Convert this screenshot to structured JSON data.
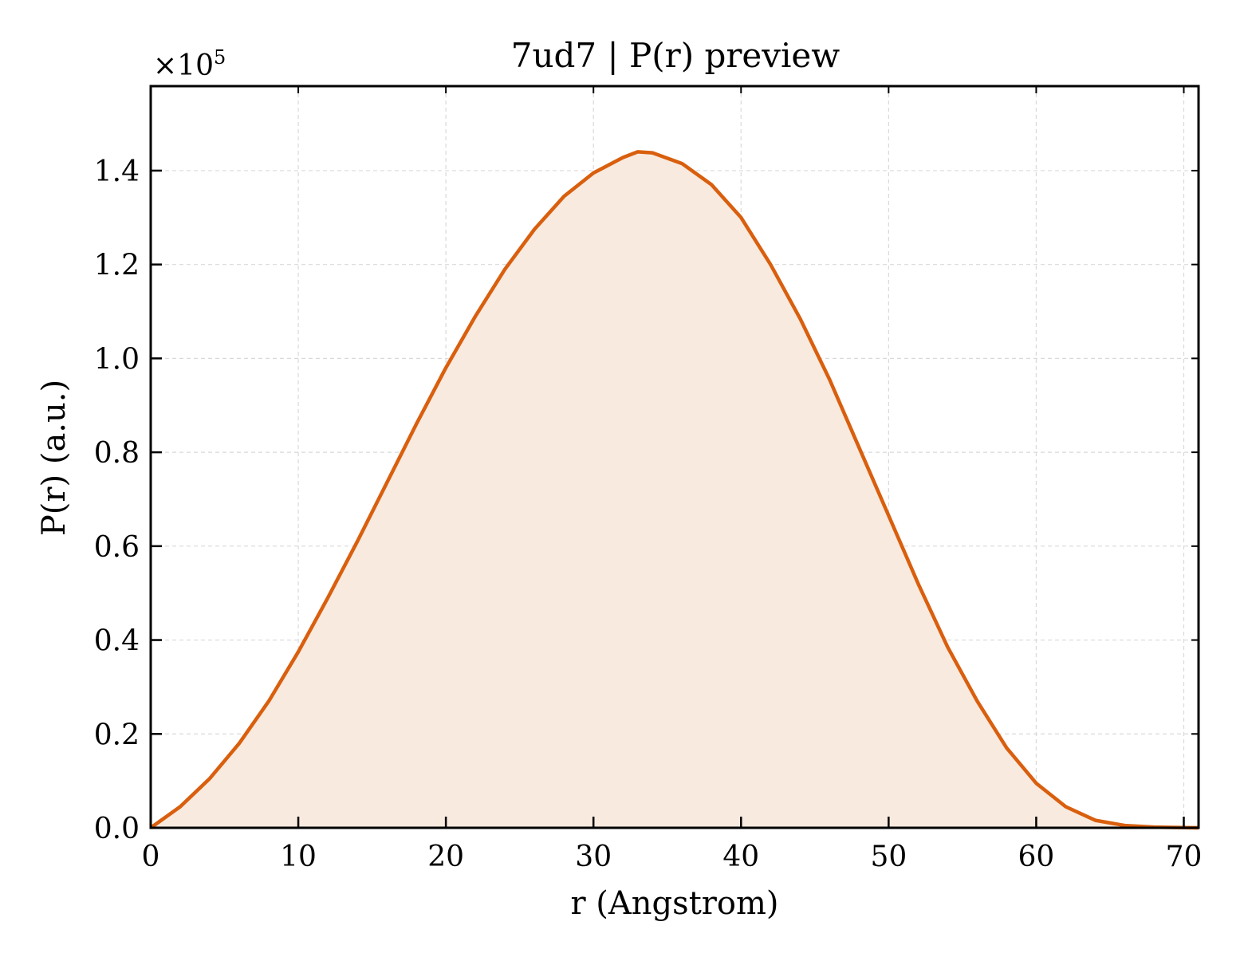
{
  "chart_data": {
    "type": "area",
    "title": "7ud7 | P(r) preview",
    "xlabel": "r (Angstrom)",
    "ylabel": "P(r) (a.u.)",
    "y_multiplier": "×10",
    "y_multiplier_exp": "5",
    "xlim": [
      0,
      71
    ],
    "ylim": [
      0,
      1.58
    ],
    "xticks": [
      0,
      10,
      20,
      30,
      40,
      50,
      60,
      70
    ],
    "yticks": [
      0.0,
      0.2,
      0.4,
      0.6,
      0.8,
      1.0,
      1.2,
      1.4
    ],
    "xtick_labels": [
      "0",
      "10",
      "20",
      "30",
      "40",
      "50",
      "60",
      "70"
    ],
    "ytick_labels": [
      "0.0",
      "0.2",
      "0.4",
      "0.6",
      "0.8",
      "1.0",
      "1.2",
      "1.4"
    ],
    "grid": true,
    "colors": {
      "line": "#d95f0e",
      "fill": "#f8eadf",
      "grid": "#d9d9d9"
    },
    "series": [
      {
        "x": [
          0,
          2,
          4,
          6,
          8,
          10,
          12,
          14,
          16,
          18,
          20,
          22,
          24,
          26,
          28,
          30,
          32,
          33,
          34,
          36,
          38,
          40,
          42,
          44,
          46,
          48,
          50,
          52,
          54,
          56,
          58,
          60,
          62,
          64,
          66,
          68,
          70,
          71
        ],
        "y": [
          0.0,
          0.045,
          0.105,
          0.18,
          0.27,
          0.375,
          0.49,
          0.61,
          0.735,
          0.86,
          0.98,
          1.09,
          1.19,
          1.275,
          1.345,
          1.395,
          1.428,
          1.44,
          1.438,
          1.415,
          1.37,
          1.3,
          1.2,
          1.085,
          0.955,
          0.81,
          0.665,
          0.52,
          0.385,
          0.27,
          0.17,
          0.095,
          0.045,
          0.016,
          0.005,
          0.0015,
          0.0005,
          0.0
        ]
      }
    ]
  }
}
